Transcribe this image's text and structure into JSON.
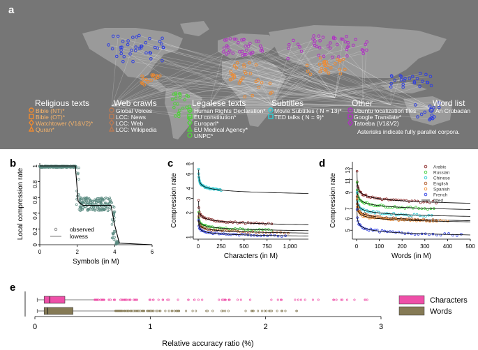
{
  "panel_a": {
    "label": "a",
    "legend": [
      {
        "title": "Religious texts",
        "items": [
          "Bible (NT)*",
          "Bible (OT)*",
          "Watchtower (V1&V2)*",
          "Quran*"
        ]
      },
      {
        "title": "Web crawls",
        "items": [
          "Global Voices",
          "LCC: News",
          "LCC: Web",
          "LCC: Wikipedia"
        ]
      },
      {
        "title": "Legalese texts",
        "items": [
          "Human Rights Declaration*",
          "EU constitution*",
          "Europarl*",
          "EU Medical Agency*",
          "UNPC*"
        ]
      },
      {
        "title": "Subtitles",
        "items": [
          "Movie Subtitles ( N = 13)*",
          "TED talks ( N = 9)*"
        ]
      },
      {
        "title": "Other",
        "items": [
          "Ubuntu localization files",
          "Google Translate*",
          "Tatoeba (V1&V2)"
        ]
      },
      {
        "title": "Word list",
        "items": [
          "An Crúbadán"
        ]
      }
    ],
    "note": "Asterisks indicate fully parallel corpora.",
    "colors": {
      "religious": "#f08a2e",
      "web": "#b87a55",
      "legal": "#4fd13a",
      "subtitles": "#2fd0d8",
      "other": "#b02fc4",
      "wordlist": "#2f3fe0"
    }
  },
  "chart_data": [
    {
      "panel": "b",
      "type": "scatter",
      "xlabel": "Symbols (in M)",
      "ylabel": "Local compression rate",
      "xlim": [
        0,
        6
      ],
      "ylim": [
        0,
        1
      ],
      "xticks": [
        "0",
        "2",
        "4",
        "6"
      ],
      "yticks": [
        "0",
        "0.2",
        "0.4",
        "0.6",
        "0.8",
        "1"
      ],
      "legend": [
        "observed",
        "lowess"
      ],
      "series": [
        {
          "name": "lowess",
          "x": [
            0,
            1.9,
            2.05,
            2.3,
            3.8,
            4.0,
            4.25,
            6.0
          ],
          "y": [
            1.0,
            1.0,
            0.55,
            0.5,
            0.5,
            0.25,
            0.02,
            0.0
          ]
        }
      ]
    },
    {
      "panel": "c",
      "type": "line",
      "xlabel": "Characters (in M)",
      "ylabel": "Compression rate",
      "xlim": [
        0,
        1200
      ],
      "ylim": [
        1,
        8
      ],
      "xticks": [
        "0",
        "250",
        "500",
        "750",
        "1,000"
      ],
      "yticks": [
        "1",
        "2",
        "3",
        "4",
        "6",
        "8"
      ],
      "series": [
        {
          "name": "Chinese",
          "color": "#2fc8d0",
          "x": [
            5,
            250,
            1200
          ],
          "y": [
            6.8,
            3.9,
            3.45
          ]
        },
        {
          "name": "Arabic",
          "color": "#8b2a2a",
          "x": [
            5,
            800,
            1200
          ],
          "y": [
            2.8,
            1.45,
            1.42
          ]
        },
        {
          "name": "Russian",
          "color": "#3fcf3a",
          "x": [
            5,
            800,
            1200
          ],
          "y": [
            2.0,
            1.24,
            1.2
          ]
        },
        {
          "name": "English",
          "color": "#b05a2a",
          "x": [
            5,
            980,
            1200
          ],
          "y": [
            1.8,
            1.15,
            1.12
          ]
        },
        {
          "name": "French",
          "color": "#2f3fe0",
          "x": [
            5,
            950,
            1200
          ],
          "y": [
            1.6,
            1.05,
            1.03
          ]
        }
      ]
    },
    {
      "panel": "d",
      "type": "line",
      "xlabel": "Words (in M)",
      "ylabel": "Compression rate",
      "xlim": [
        0,
        500
      ],
      "ylim": [
        4.5,
        14
      ],
      "xticks": [
        "0",
        "100",
        "200",
        "300",
        "400",
        "500"
      ],
      "yticks": [
        "5",
        "6",
        "7",
        "9",
        "11",
        "13"
      ],
      "legend": [
        "Arabic",
        "Russian",
        "Chinese",
        "English",
        "Spanish",
        "French",
        "fitted"
      ],
      "series": [
        {
          "name": "Arabic",
          "color": "#8b2a2a",
          "x": [
            2,
            350,
            500
          ],
          "y": [
            12.5,
            7.8,
            7.6
          ]
        },
        {
          "name": "Russian",
          "color": "#3fcf3a",
          "x": [
            2,
            340,
            500
          ],
          "y": [
            10.5,
            7.0,
            6.9
          ]
        },
        {
          "name": "Chinese",
          "color": "#2fc8d0",
          "x": [
            2,
            330,
            500
          ],
          "y": [
            9.0,
            6.3,
            6.2
          ]
        },
        {
          "name": "English",
          "color": "#b05a2a",
          "x": [
            2,
            350,
            500
          ],
          "y": [
            8.5,
            5.9,
            5.8
          ]
        },
        {
          "name": "Spanish",
          "color": "#f08a2e",
          "x": [
            2,
            400,
            500
          ],
          "y": [
            8.0,
            5.75,
            5.7
          ]
        },
        {
          "name": "French",
          "color": "#2f3fe0",
          "x": [
            2,
            460,
            500
          ],
          "y": [
            7.0,
            4.7,
            4.65
          ]
        }
      ]
    },
    {
      "panel": "e",
      "type": "box",
      "xlabel": "Relative accuracy ratio (%)",
      "xlim": [
        0,
        3
      ],
      "xticks": [
        "0",
        "1",
        "2",
        "3"
      ],
      "series": [
        {
          "name": "Characters",
          "color": "#ee4fa8",
          "min": 0.02,
          "q1": 0.08,
          "median": 0.13,
          "q3": 0.26,
          "whisker_hi": 0.52,
          "max": 2.88
        },
        {
          "name": "Words",
          "color": "#857a55",
          "min": 0.02,
          "q1": 0.08,
          "median": 0.11,
          "q3": 0.33,
          "whisker_hi": 0.7,
          "max": 2.27
        }
      ]
    }
  ]
}
